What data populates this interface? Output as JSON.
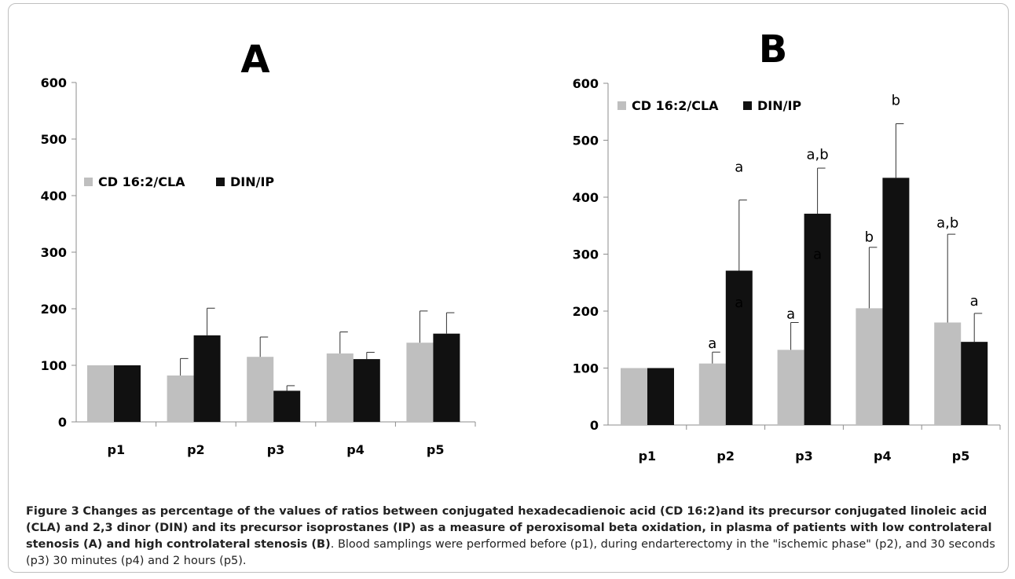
{
  "chart_data": [
    {
      "type": "bar",
      "panel_label": "A",
      "categories": [
        "p1",
        "p2",
        "p3",
        "p4",
        "p5"
      ],
      "series": [
        {
          "name": "CD 16:2/CLA",
          "values": [
            100,
            82,
            115,
            121,
            140
          ],
          "errors": [
            0,
            30,
            35,
            38,
            56
          ]
        },
        {
          "name": "DIN/IP",
          "values": [
            100,
            153,
            55,
            111,
            156
          ],
          "errors": [
            0,
            48,
            9,
            12,
            37
          ]
        }
      ],
      "ylim": [
        0,
        600
      ],
      "yticks": [
        "0",
        "100",
        "200",
        "300",
        "400",
        "500",
        "600"
      ],
      "legend_placement": "upper-left",
      "grid": false,
      "annotations": []
    },
    {
      "type": "bar",
      "panel_label": "B",
      "categories": [
        "p1",
        "p2",
        "p3",
        "p4",
        "p5"
      ],
      "series": [
        {
          "name": "CD 16:2/CLA",
          "values": [
            100,
            108,
            132,
            205,
            180
          ],
          "errors": [
            0,
            20,
            48,
            107,
            155
          ]
        },
        {
          "name": "DIN/IP",
          "values": [
            100,
            271,
            371,
            434,
            146
          ],
          "errors": [
            0,
            124,
            80,
            95,
            50
          ]
        }
      ],
      "ylim": [
        0,
        600
      ],
      "yticks": [
        "0",
        "100",
        "200",
        "300",
        "400",
        "500",
        "600"
      ],
      "legend_placement": "top-left",
      "grid": false,
      "annotations": [
        {
          "category": 1,
          "series": 0,
          "text": "a",
          "y": 135
        },
        {
          "category": 1,
          "series": 1,
          "text": "a",
          "y": 445
        },
        {
          "category": 1,
          "series": 1,
          "text": "a",
          "y": 207
        },
        {
          "category": 2,
          "series": 0,
          "text": "a",
          "y": 187
        },
        {
          "category": 2,
          "series": 1,
          "text": "a,b",
          "y": 467
        },
        {
          "category": 2,
          "series": 1,
          "text": "a",
          "y": 292
        },
        {
          "category": 3,
          "series": 0,
          "text": "b",
          "y": 322
        },
        {
          "category": 3,
          "series": 1,
          "text": "b",
          "y": 562
        },
        {
          "category": 4,
          "series": 0,
          "text": "a,b",
          "y": 347
        },
        {
          "category": 4,
          "series": 1,
          "text": "a",
          "y": 210
        }
      ]
    }
  ],
  "caption": {
    "label": "Figure 3",
    "title": "Changes as percentage of the values of ratios between conjugated hexadecadienoic acid (CD 16:2)and its precursor conjugated linoleic acid (CLA) and 2,3 dinor (DIN) and its precursor isoprostanes (IP) as a measure of peroxisomal beta oxidation, in plasma of patients with low controlateral stenosis (A) and high controlateral stenosis (B)",
    "body": ". Blood samplings were performed before (p1), during endarterectomy in the \"ischemic phase\" (p2), and 30 seconds (p3) 30 minutes (p4) and 2 hours (p5)."
  },
  "colors": {
    "series0": "#bfbfbf",
    "series1": "#111111",
    "axis": "#8c8c8c"
  }
}
